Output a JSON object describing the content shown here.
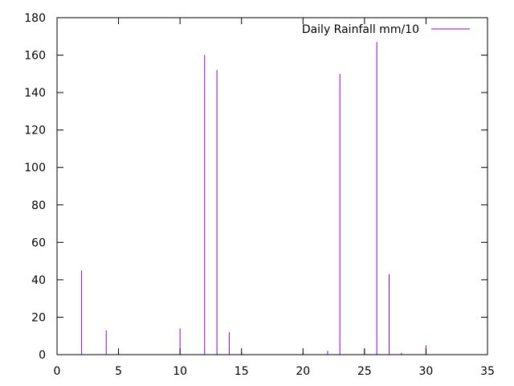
{
  "chart_data": {
    "type": "bar",
    "title": "",
    "xlabel": "",
    "ylabel": "",
    "xlim": [
      0,
      35
    ],
    "ylim": [
      0,
      180
    ],
    "x_ticks": [
      0,
      5,
      10,
      15,
      20,
      25,
      30,
      35
    ],
    "y_ticks": [
      0,
      20,
      40,
      60,
      80,
      100,
      120,
      140,
      160,
      180
    ],
    "grid": false,
    "legend_position": "top-right",
    "series": [
      {
        "name": "Daily Rainfall mm/10",
        "color": "#9400d3",
        "x": [
          2,
          4,
          5,
          10,
          12,
          13,
          14,
          15,
          20,
          22,
          23,
          25,
          26,
          27,
          28,
          30
        ],
        "values": [
          45,
          13,
          1,
          14,
          160,
          152,
          12,
          1,
          1,
          2,
          150,
          3,
          167,
          43,
          1,
          5
        ]
      }
    ]
  }
}
